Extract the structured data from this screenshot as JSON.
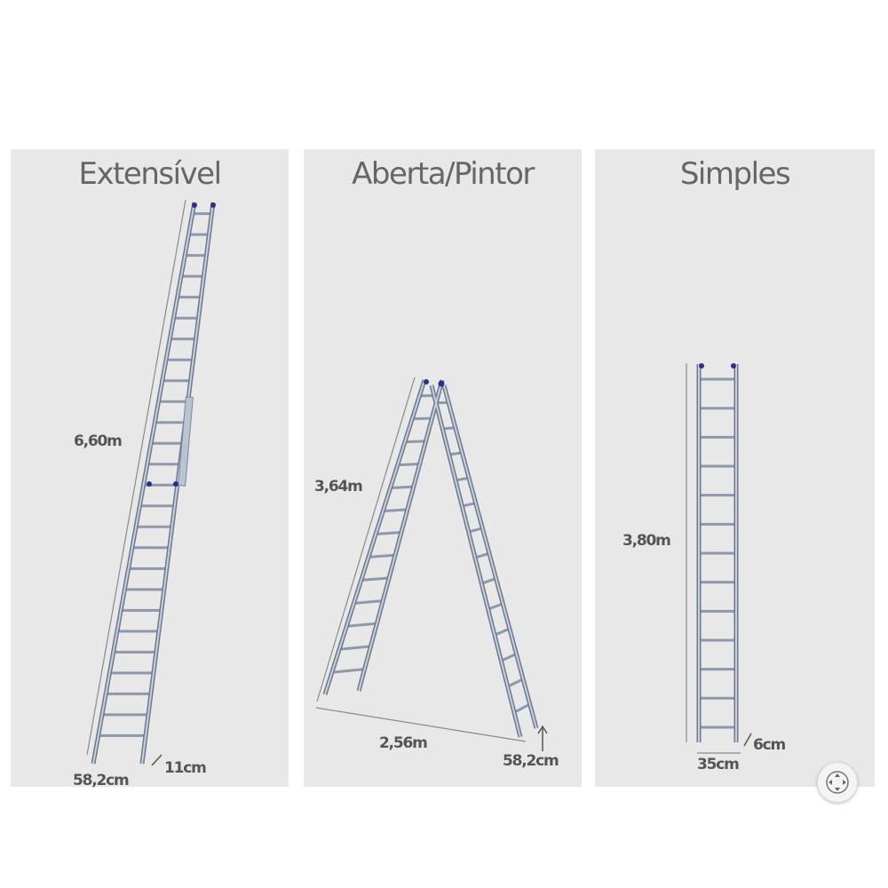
{
  "panels": [
    {
      "title": "Extensível",
      "height_label": "6,60m",
      "width_label": "58,2cm",
      "depth_label": "11cm"
    },
    {
      "title": "Aberta/Pintor",
      "height_label": "3,64m",
      "spread_label": "2,56m",
      "width_label": "58,2cm"
    },
    {
      "title": "Simples",
      "height_label": "3,80m",
      "width_label": "35cm",
      "depth_label": "6cm"
    }
  ],
  "icons": {
    "zoom": "move-zoom-icon"
  },
  "colors": {
    "panel_bg": "#e8e8e8",
    "rail": "#b9c4d2",
    "rail_edge": "#6d7a8e",
    "cap": "#2a2f8a",
    "text": "#555555"
  }
}
